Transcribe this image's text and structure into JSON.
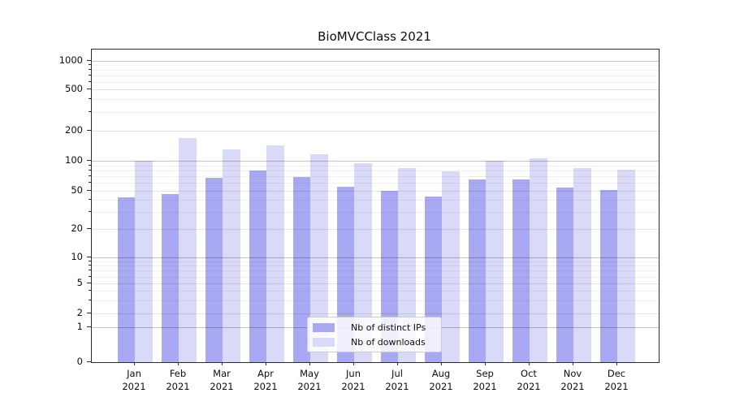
{
  "chart_data": {
    "type": "bar",
    "title": "BioMVCClass 2021",
    "categories": [
      "Jan 2021",
      "Feb 2021",
      "Mar 2021",
      "Apr 2021",
      "May 2021",
      "Jun 2021",
      "Jul 2021",
      "Aug 2021",
      "Sep 2021",
      "Oct 2021",
      "Nov 2021",
      "Dec 2021"
    ],
    "series": [
      {
        "name": "Nb of distinct IPs",
        "color": "#a9a9f3",
        "values": [
          43,
          46,
          68,
          80,
          69,
          55,
          50,
          44,
          65,
          65,
          54,
          51
        ]
      },
      {
        "name": "Nb of downloads",
        "color": "#d9d9f8",
        "values": [
          100,
          168,
          130,
          143,
          116,
          95,
          84,
          79,
          100,
          106,
          84,
          81
        ]
      }
    ],
    "xlabel": "",
    "ylabel": "",
    "yscale": "symlog",
    "yticks": [
      0,
      1,
      2,
      5,
      10,
      20,
      50,
      100,
      200,
      500,
      1000
    ],
    "ylim": [
      0,
      1250
    ],
    "grid": true,
    "legend_position": "lower center"
  }
}
